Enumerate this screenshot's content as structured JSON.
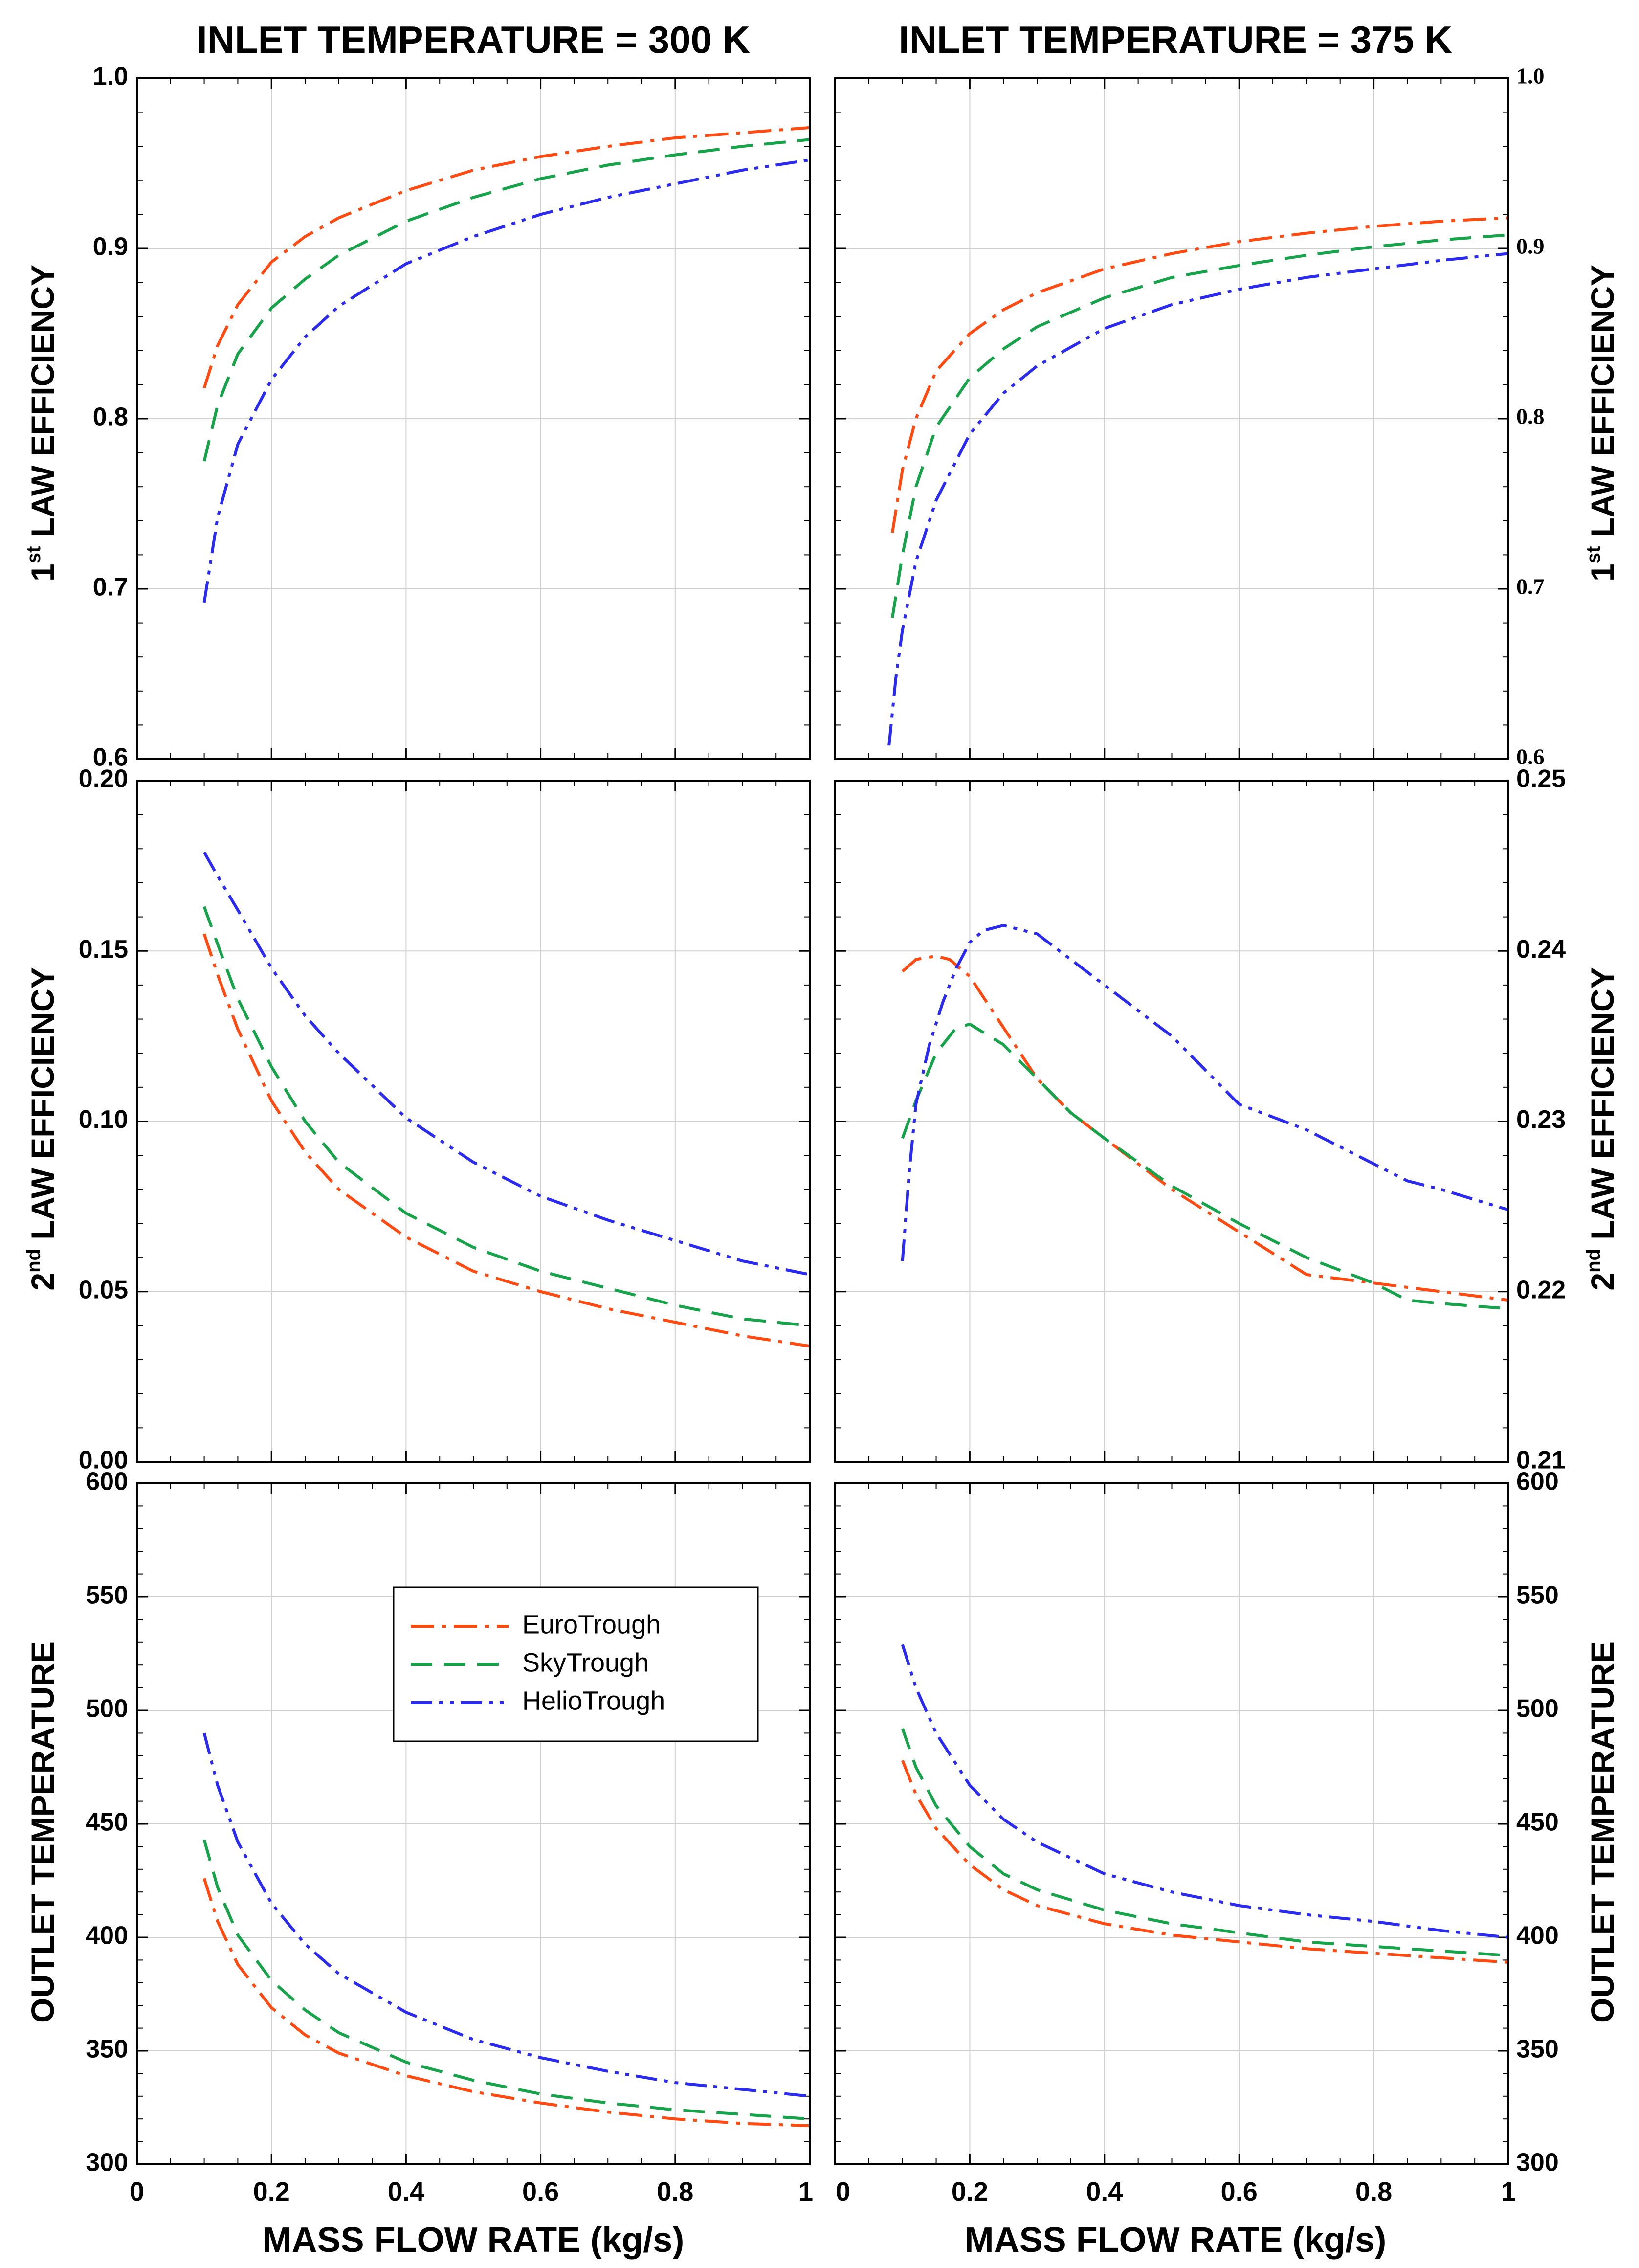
{
  "column_titles": [
    "INLET TEMPERATURE = 300 K",
    "INLET TEMPERATURE = 375 K"
  ],
  "x_axis_label": "MASS FLOW RATE (kg/s)",
  "row_labels": [
    {
      "main": "1",
      "sup": "st",
      "rest": " LAW EFFICIENCY"
    },
    {
      "main": "2",
      "sup": "nd",
      "rest": " LAW EFFICIENCY"
    },
    {
      "main": "OUTLET TEMPERATURE",
      "sup": "",
      "rest": ""
    }
  ],
  "legend": {
    "entries": [
      "EuroTrough",
      "SkyTrough",
      "HelioTrough"
    ]
  },
  "series_styles": [
    {
      "name": "EuroTrough",
      "color": "#ff4b12",
      "dash": "dashdot"
    },
    {
      "name": "SkyTrough",
      "color": "#17a34a",
      "dash": "dash"
    },
    {
      "name": "HelioTrough",
      "color": "#2b2bf0",
      "dash": "dashdotdot"
    }
  ],
  "chart_data": [
    {
      "id": "r1c1",
      "type": "line",
      "row": 0,
      "col": 0,
      "xlim": [
        0,
        1
      ],
      "ylim": [
        0.6,
        1.0
      ],
      "xticks": [
        "0",
        "0.2",
        "0.4",
        "0.6",
        "0.8",
        "1"
      ],
      "yticks": [
        "0.6",
        "0.7",
        "0.8",
        "0.9",
        "1.0"
      ],
      "series": [
        {
          "name": "EuroTrough",
          "x": [
            0.1,
            0.12,
            0.15,
            0.2,
            0.25,
            0.3,
            0.4,
            0.5,
            0.6,
            0.7,
            0.8,
            0.9,
            1.0
          ],
          "y": [
            0.818,
            0.843,
            0.867,
            0.892,
            0.907,
            0.918,
            0.934,
            0.946,
            0.954,
            0.96,
            0.965,
            0.968,
            0.971
          ]
        },
        {
          "name": "SkyTrough",
          "x": [
            0.1,
            0.12,
            0.15,
            0.2,
            0.25,
            0.3,
            0.4,
            0.5,
            0.6,
            0.7,
            0.8,
            0.9,
            1.0
          ],
          "y": [
            0.775,
            0.808,
            0.838,
            0.865,
            0.882,
            0.896,
            0.916,
            0.93,
            0.941,
            0.949,
            0.955,
            0.96,
            0.964
          ]
        },
        {
          "name": "HelioTrough",
          "x": [
            0.1,
            0.12,
            0.15,
            0.2,
            0.25,
            0.3,
            0.4,
            0.5,
            0.6,
            0.7,
            0.8,
            0.9,
            1.0
          ],
          "y": [
            0.692,
            0.742,
            0.785,
            0.823,
            0.848,
            0.866,
            0.891,
            0.907,
            0.92,
            0.93,
            0.938,
            0.946,
            0.952
          ]
        }
      ]
    },
    {
      "id": "r1c2",
      "type": "line",
      "row": 0,
      "col": 1,
      "xlim": [
        0,
        1
      ],
      "ylim": [
        0.6,
        1.0
      ],
      "xticks": [
        "0",
        "0.2",
        "0.4",
        "0.6",
        "0.8",
        "1"
      ],
      "yticks": [
        "0.6",
        "0.7",
        "0.8",
        "0.9",
        "1.0"
      ],
      "series": [
        {
          "name": "EuroTrough",
          "x": [
            0.085,
            0.1,
            0.12,
            0.15,
            0.2,
            0.25,
            0.3,
            0.4,
            0.5,
            0.6,
            0.7,
            0.8,
            0.9,
            1.0
          ],
          "y": [
            0.733,
            0.77,
            0.8,
            0.828,
            0.85,
            0.864,
            0.874,
            0.888,
            0.897,
            0.904,
            0.909,
            0.913,
            0.916,
            0.918
          ]
        },
        {
          "name": "SkyTrough",
          "x": [
            0.085,
            0.1,
            0.12,
            0.15,
            0.2,
            0.25,
            0.3,
            0.4,
            0.5,
            0.6,
            0.7,
            0.8,
            0.9,
            1.0
          ],
          "y": [
            0.683,
            0.72,
            0.76,
            0.795,
            0.824,
            0.841,
            0.854,
            0.871,
            0.883,
            0.89,
            0.896,
            0.901,
            0.905,
            0.908
          ]
        },
        {
          "name": "HelioTrough",
          "x": [
            0.08,
            0.09,
            0.1,
            0.12,
            0.15,
            0.2,
            0.25,
            0.3,
            0.4,
            0.5,
            0.6,
            0.7,
            0.8,
            0.9,
            1.0
          ],
          "y": [
            0.608,
            0.647,
            0.676,
            0.716,
            0.752,
            0.791,
            0.815,
            0.831,
            0.853,
            0.867,
            0.876,
            0.883,
            0.888,
            0.893,
            0.897
          ]
        }
      ]
    },
    {
      "id": "r2c1",
      "type": "line",
      "row": 1,
      "col": 0,
      "xlim": [
        0,
        1
      ],
      "ylim": [
        0.0,
        0.2
      ],
      "xticks": [
        "0",
        "0.2",
        "0.4",
        "0.6",
        "0.8",
        "1"
      ],
      "yticks": [
        "0.00",
        "0.05",
        "0.10",
        "0.15",
        "0.20"
      ],
      "series": [
        {
          "name": "EuroTrough",
          "x": [
            0.1,
            0.12,
            0.15,
            0.2,
            0.25,
            0.3,
            0.4,
            0.5,
            0.6,
            0.7,
            0.8,
            0.9,
            1.0
          ],
          "y": [
            0.155,
            0.143,
            0.127,
            0.106,
            0.091,
            0.08,
            0.066,
            0.056,
            0.05,
            0.045,
            0.041,
            0.037,
            0.034
          ]
        },
        {
          "name": "SkyTrough",
          "x": [
            0.1,
            0.12,
            0.15,
            0.2,
            0.25,
            0.3,
            0.4,
            0.5,
            0.6,
            0.7,
            0.8,
            0.9,
            1.0
          ],
          "y": [
            0.163,
            0.152,
            0.136,
            0.116,
            0.1,
            0.088,
            0.073,
            0.063,
            0.056,
            0.051,
            0.046,
            0.042,
            0.04
          ]
        },
        {
          "name": "HelioTrough",
          "x": [
            0.1,
            0.12,
            0.15,
            0.2,
            0.25,
            0.3,
            0.4,
            0.5,
            0.6,
            0.7,
            0.8,
            0.9,
            1.0
          ],
          "y": [
            0.179,
            0.172,
            0.162,
            0.145,
            0.131,
            0.12,
            0.101,
            0.088,
            0.078,
            0.071,
            0.065,
            0.059,
            0.055
          ]
        }
      ]
    },
    {
      "id": "r2c2",
      "type": "line",
      "row": 1,
      "col": 1,
      "xlim": [
        0,
        1
      ],
      "ylim": [
        0.21,
        0.25
      ],
      "xticks": [
        "0",
        "0.2",
        "0.4",
        "0.6",
        "0.8",
        "1"
      ],
      "yticks": [
        "0.21",
        "0.22",
        "0.23",
        "0.24",
        "0.25"
      ],
      "series": [
        {
          "name": "EuroTrough",
          "x": [
            0.1,
            0.12,
            0.15,
            0.17,
            0.2,
            0.25,
            0.3,
            0.35,
            0.4,
            0.5,
            0.6,
            0.7,
            0.8,
            0.9,
            1.0
          ],
          "y": [
            0.2388,
            0.2395,
            0.2397,
            0.2395,
            0.2385,
            0.2355,
            0.2325,
            0.2305,
            0.229,
            0.226,
            0.2235,
            0.221,
            0.2205,
            0.22,
            0.2195
          ]
        },
        {
          "name": "SkyTrough",
          "x": [
            0.1,
            0.12,
            0.15,
            0.18,
            0.2,
            0.25,
            0.3,
            0.35,
            0.4,
            0.5,
            0.6,
            0.7,
            0.8,
            0.85,
            0.9,
            1.0
          ],
          "y": [
            0.229,
            0.2312,
            0.234,
            0.2355,
            0.2357,
            0.2345,
            0.2325,
            0.2305,
            0.229,
            0.2262,
            0.224,
            0.222,
            0.2205,
            0.2195,
            0.2193,
            0.219
          ]
        },
        {
          "name": "HelioTrough",
          "x": [
            0.1,
            0.11,
            0.12,
            0.14,
            0.16,
            0.18,
            0.2,
            0.22,
            0.25,
            0.3,
            0.35,
            0.4,
            0.5,
            0.6,
            0.7,
            0.8,
            0.85,
            0.9,
            1.0
          ],
          "y": [
            0.2218,
            0.227,
            0.231,
            0.2345,
            0.237,
            0.239,
            0.2405,
            0.2412,
            0.2415,
            0.241,
            0.2395,
            0.238,
            0.235,
            0.231,
            0.2295,
            0.2275,
            0.2265,
            0.226,
            0.2248
          ]
        }
      ]
    },
    {
      "id": "r3c1",
      "type": "line",
      "row": 2,
      "col": 0,
      "xlim": [
        0,
        1
      ],
      "ylim": [
        300,
        600
      ],
      "xticks": [
        "0",
        "0.2",
        "0.4",
        "0.6",
        "0.8",
        "1"
      ],
      "yticks": [
        "300",
        "350",
        "400",
        "450",
        "500",
        "550",
        "600"
      ],
      "series": [
        {
          "name": "EuroTrough",
          "x": [
            0.1,
            0.12,
            0.15,
            0.2,
            0.25,
            0.3,
            0.4,
            0.5,
            0.6,
            0.7,
            0.8,
            0.9,
            1.0
          ],
          "y": [
            426,
            407,
            388,
            369,
            357,
            349,
            339,
            332,
            327,
            323,
            320,
            318,
            317
          ]
        },
        {
          "name": "SkyTrough",
          "x": [
            0.1,
            0.12,
            0.15,
            0.2,
            0.25,
            0.3,
            0.4,
            0.5,
            0.6,
            0.7,
            0.8,
            0.9,
            1.0
          ],
          "y": [
            443,
            422,
            401,
            381,
            368,
            358,
            345,
            337,
            331,
            327,
            324,
            322,
            320
          ]
        },
        {
          "name": "HelioTrough",
          "x": [
            0.1,
            0.12,
            0.15,
            0.2,
            0.25,
            0.3,
            0.4,
            0.5,
            0.6,
            0.7,
            0.8,
            0.9,
            1.0
          ],
          "y": [
            490,
            467,
            442,
            415,
            397,
            384,
            367,
            355,
            347,
            341,
            336,
            333,
            330
          ]
        }
      ]
    },
    {
      "id": "r3c2",
      "type": "line",
      "row": 2,
      "col": 1,
      "xlim": [
        0,
        1
      ],
      "ylim": [
        300,
        600
      ],
      "xticks": [
        "0",
        "0.2",
        "0.4",
        "0.6",
        "0.8",
        "1"
      ],
      "yticks": [
        "300",
        "350",
        "400",
        "450",
        "500",
        "550",
        "600"
      ],
      "series": [
        {
          "name": "EuroTrough",
          "x": [
            0.1,
            0.12,
            0.15,
            0.2,
            0.25,
            0.3,
            0.4,
            0.5,
            0.6,
            0.7,
            0.8,
            0.9,
            1.0
          ],
          "y": [
            478,
            463,
            448,
            432,
            421,
            414,
            406,
            401,
            398,
            395,
            393,
            391,
            389
          ]
        },
        {
          "name": "SkyTrough",
          "x": [
            0.1,
            0.12,
            0.15,
            0.2,
            0.25,
            0.3,
            0.4,
            0.5,
            0.6,
            0.7,
            0.8,
            0.9,
            1.0
          ],
          "y": [
            492,
            475,
            458,
            440,
            428,
            421,
            412,
            406,
            402,
            398,
            396,
            394,
            392
          ]
        },
        {
          "name": "HelioTrough",
          "x": [
            0.1,
            0.12,
            0.15,
            0.2,
            0.25,
            0.3,
            0.4,
            0.5,
            0.6,
            0.7,
            0.8,
            0.9,
            1.0
          ],
          "y": [
            529,
            510,
            490,
            467,
            452,
            442,
            428,
            420,
            414,
            410,
            407,
            403,
            400
          ]
        }
      ]
    }
  ]
}
